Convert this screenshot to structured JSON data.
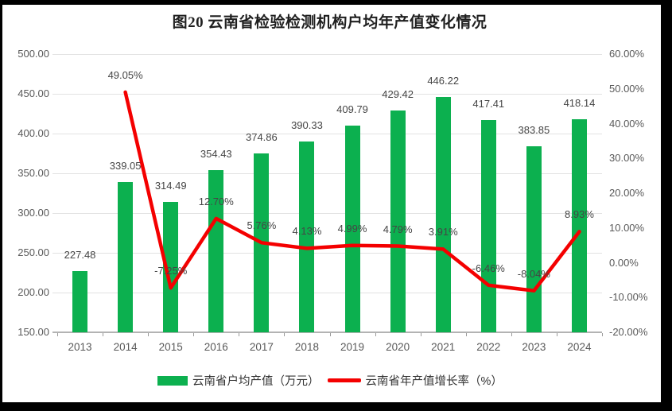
{
  "page": {
    "title": "图20  云南省检验检测机构户均年产值变化情况"
  },
  "chart_data": {
    "type": "bar",
    "subtype": "bar+line combo",
    "title": "图20  云南省检验检测机构户均年产值变化情况",
    "categories": [
      "2013",
      "2014",
      "2015",
      "2016",
      "2017",
      "2018",
      "2019",
      "2020",
      "2021",
      "2022",
      "2023",
      "2024"
    ],
    "series": [
      {
        "name": "云南省户均产值（万元）",
        "type": "bar",
        "axis": "left",
        "color": "#0cb04f",
        "values": [
          227.48,
          339.05,
          314.49,
          354.43,
          374.86,
          390.33,
          409.79,
          429.42,
          446.22,
          417.41,
          383.85,
          418.14
        ],
        "labels": [
          "227.48",
          "339.05",
          "314.49",
          "354.43",
          "374.86",
          "390.33",
          "409.79",
          "429.42",
          "446.22",
          "417.41",
          "383.85",
          "418.14"
        ]
      },
      {
        "name": "云南省年产值增长率（%）",
        "type": "line",
        "axis": "right",
        "color": "#f40000",
        "values": [
          null,
          49.05,
          -7.25,
          12.7,
          5.76,
          4.13,
          4.99,
          4.79,
          3.91,
          -6.46,
          -8.04,
          8.93
        ],
        "labels": [
          null,
          "49.05%",
          "-7.25%",
          "12.70%",
          "5.76%",
          "4.13%",
          "4.99%",
          "4.79%",
          "3.91%",
          "-6.46%",
          "-8.04%",
          "8.93%"
        ]
      }
    ],
    "left_axis": {
      "min": 150,
      "max": 500,
      "step": 50,
      "tick_labels": [
        "150.00",
        "200.00",
        "250.00",
        "300.00",
        "350.00",
        "400.00",
        "450.00",
        "500.00"
      ]
    },
    "right_axis": {
      "min": -20,
      "max": 60,
      "step": 10,
      "tick_labels": [
        "-20.00%",
        "-10.00%",
        "0.00%",
        "10.00%",
        "20.00%",
        "30.00%",
        "40.00%",
        "50.00%",
        "60.00%"
      ]
    },
    "grid": true,
    "legend_position": "bottom"
  },
  "legend": {
    "items": [
      {
        "label": "云南省户均产值（万元）",
        "swatch": "bar",
        "color": "#0cb04f"
      },
      {
        "label": "云南省年产值增长率（%）",
        "swatch": "line",
        "color": "#f40000"
      }
    ]
  }
}
